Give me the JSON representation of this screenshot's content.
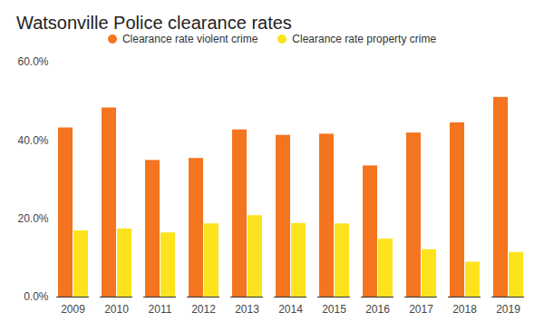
{
  "chart_data": {
    "type": "bar",
    "title": "Watsonville Police clearance rates",
    "categories": [
      "2009",
      "2010",
      "2011",
      "2012",
      "2013",
      "2014",
      "2015",
      "2016",
      "2017",
      "2018",
      "2019"
    ],
    "series": [
      {
        "name": "Clearance rate violent crime",
        "color": "#f4741f",
        "values": [
          43.2,
          48.3,
          34.9,
          35.4,
          42.7,
          41.3,
          41.6,
          33.5,
          41.9,
          44.5,
          51.0
        ]
      },
      {
        "name": "Clearance rate property crime",
        "color": "#fde31d",
        "values": [
          16.9,
          17.4,
          16.4,
          18.7,
          20.8,
          18.8,
          18.7,
          14.8,
          12.1,
          8.9,
          11.4
        ]
      }
    ],
    "ylim": [
      0,
      60
    ],
    "yticks": [
      {
        "value": 0,
        "label": "0.0%"
      },
      {
        "value": 20,
        "label": "20.0%"
      },
      {
        "value": 40,
        "label": "40.0%"
      },
      {
        "value": 60,
        "label": "60.0%"
      }
    ],
    "grid": false,
    "legend": "top"
  }
}
